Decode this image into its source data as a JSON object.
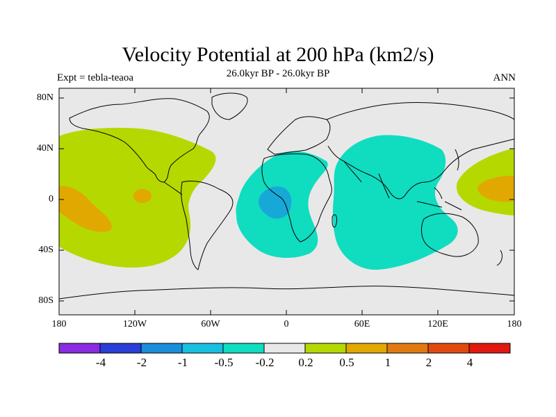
{
  "plot": {
    "title": "Velocity Potential at 200 hPa (km2/s)",
    "subtitle": "26.0kyr BP - 26.0kyr BP",
    "left_label": "Expt = tebla-teaoa",
    "right_label": "ANN"
  },
  "axes": {
    "y_ticks": [
      "80N",
      "40N",
      "0",
      "40S",
      "80S"
    ],
    "x_ticks": [
      "180",
      "120W",
      "60W",
      "0",
      "60E",
      "120E",
      "180"
    ]
  },
  "colorbar": {
    "labels": [
      "-4",
      "-2",
      "-1",
      "-0.5",
      "-0.2",
      "0.2",
      "0.5",
      "1",
      "2",
      "4"
    ],
    "colors": [
      "#8a2be2",
      "#2a3fd6",
      "#1a8ddb",
      "#17bfe0",
      "#10dcc0",
      "#e8e8e8",
      "#b5d800",
      "#e0a800",
      "#e07a10",
      "#e04a10",
      "#e01a10"
    ]
  },
  "colors": {
    "land_bg": "#e8e8e8",
    "positive_light": "#b5d800",
    "positive_mid": "#e0a800",
    "negative_light": "#10dcc0",
    "negative_mid": "#17a8d8"
  }
}
